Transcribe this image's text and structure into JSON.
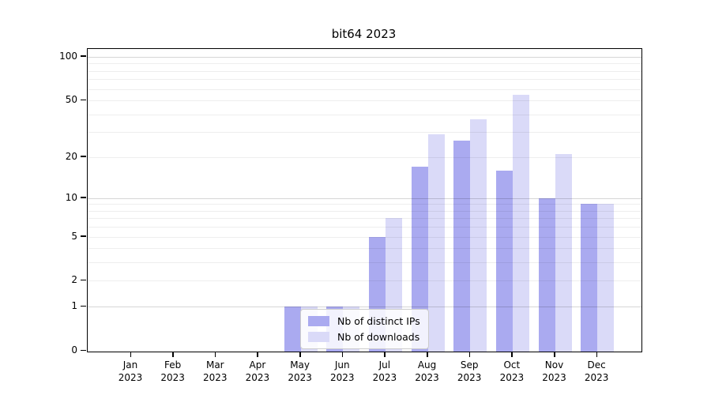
{
  "title": "bit64 2023",
  "chart_data": {
    "type": "bar",
    "title": "bit64 2023",
    "categories": [
      "Jan",
      "Feb",
      "Mar",
      "Apr",
      "May",
      "Jun",
      "Jul",
      "Aug",
      "Sep",
      "Oct",
      "Nov",
      "Dec"
    ],
    "category_year": "2023",
    "series": [
      {
        "name": "Nb of distinct IPs",
        "color": "#aaaaf0",
        "values": [
          0,
          0,
          0,
          0,
          1,
          1,
          5,
          17,
          26,
          16,
          10,
          9
        ]
      },
      {
        "name": "Nb of downloads",
        "color": "#dadaf8",
        "values": [
          0,
          0,
          0,
          0,
          1,
          1,
          7,
          29,
          37,
          55,
          21,
          9
        ]
      }
    ],
    "xlabel": "",
    "ylabel": "",
    "yscale": "log10(1+x)",
    "ylim": [
      0,
      113
    ],
    "yticks": [
      0,
      1,
      2,
      5,
      10,
      20,
      50,
      100
    ],
    "grid": true,
    "decade_gridlines": [
      1,
      10,
      100
    ],
    "minor_gridlines": [
      2,
      3,
      4,
      5,
      6,
      7,
      8,
      9,
      20,
      30,
      40,
      50,
      60,
      70,
      80,
      90
    ],
    "legend_position": "lower center inside plot"
  },
  "colors": {
    "series1": "#aaaaf0",
    "series2": "#dadaf8",
    "decade_grid": "rgba(0,0,0,0.16)",
    "minor_grid": "rgba(0,0,0,0.065)",
    "spine": "#000000",
    "legend_border": "#cccccc"
  }
}
